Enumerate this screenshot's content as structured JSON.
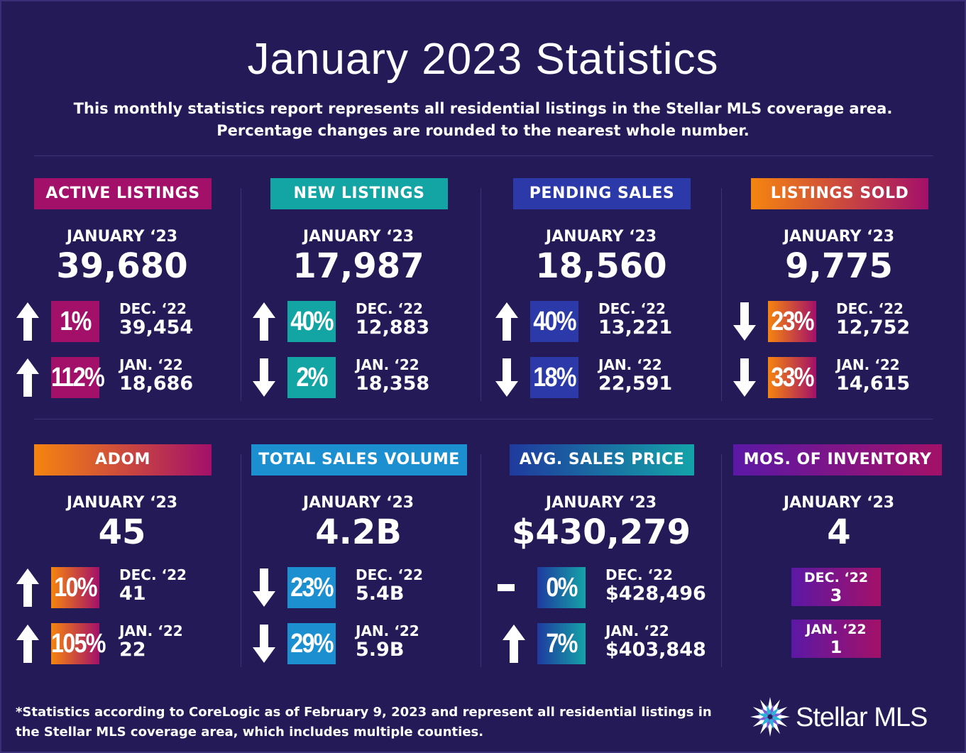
{
  "title": "January 2023 Statistics",
  "subtitle_line1": "This monthly statistics report represents all residential listings in the Stellar MLS coverage area.",
  "subtitle_line2": "Percentage changes are rounded to the nearest whole number.",
  "cards": [
    {
      "label": "ACTIVE LISTINGS",
      "period": "JANUARY ‘23",
      "value": "39,680",
      "rows": [
        {
          "dir": "up",
          "pct": "1%",
          "cmp_label": "DEC. ‘22",
          "cmp_value": "39,454"
        },
        {
          "dir": "up",
          "pct": "112%",
          "cmp_label": "JAN. ‘22",
          "cmp_value": "18,686"
        }
      ]
    },
    {
      "label": "NEW LISTINGS",
      "period": "JANUARY ‘23",
      "value": "17,987",
      "rows": [
        {
          "dir": "up",
          "pct": "40%",
          "cmp_label": "DEC. ‘22",
          "cmp_value": "12,883"
        },
        {
          "dir": "down",
          "pct": "2%",
          "cmp_label": "JAN. ‘22",
          "cmp_value": "18,358"
        }
      ]
    },
    {
      "label": "PENDING SALES",
      "period": "JANUARY ‘23",
      "value": "18,560",
      "rows": [
        {
          "dir": "up",
          "pct": "40%",
          "cmp_label": "DEC. ‘22",
          "cmp_value": "13,221"
        },
        {
          "dir": "down",
          "pct": "18%",
          "cmp_label": "JAN. ‘22",
          "cmp_value": "22,591"
        }
      ]
    },
    {
      "label": "LISTINGS SOLD",
      "period": "JANUARY ‘23",
      "value": "9,775",
      "rows": [
        {
          "dir": "down",
          "pct": "23%",
          "cmp_label": "DEC. ‘22",
          "cmp_value": "12,752"
        },
        {
          "dir": "down",
          "pct": "33%",
          "cmp_label": "JAN. ‘22",
          "cmp_value": "14,615"
        }
      ]
    },
    {
      "label": "ADOM",
      "period": "JANUARY ‘23",
      "value": "45",
      "rows": [
        {
          "dir": "up",
          "pct": "10%",
          "cmp_label": "DEC. ‘22",
          "cmp_value": "41"
        },
        {
          "dir": "up",
          "pct": "105%",
          "cmp_label": "JAN. ‘22",
          "cmp_value": "22"
        }
      ]
    },
    {
      "label": "TOTAL SALES VOLUME",
      "period": "JANUARY ‘23",
      "value": "4.2B",
      "rows": [
        {
          "dir": "down",
          "pct": "23%",
          "cmp_label": "DEC. ‘22",
          "cmp_value": "5.4B"
        },
        {
          "dir": "down",
          "pct": "29%",
          "cmp_label": "JAN. ‘22",
          "cmp_value": "5.9B"
        }
      ]
    },
    {
      "label": "AVG. SALES PRICE",
      "period": "JANUARY ‘23",
      "value": "$430,279",
      "rows": [
        {
          "dir": "flat",
          "pct": "0%",
          "cmp_label": "DEC. ‘22",
          "cmp_value": "$428,496"
        },
        {
          "dir": "up",
          "pct": "7%",
          "cmp_label": "JAN. ‘22",
          "cmp_value": "$403,848"
        }
      ]
    },
    {
      "label": "MOS. OF INVENTORY",
      "period": "JANUARY ‘23",
      "value": "4",
      "inventory": [
        {
          "label": "DEC. ‘22",
          "value": "3"
        },
        {
          "label": "JAN. ‘22",
          "value": "1"
        }
      ]
    }
  ],
  "colors": {
    "background": "#241a57",
    "magenta": "#a3106a",
    "teal": "#13a5a3",
    "blue": "#2b3aa8",
    "orange_to_magenta": [
      "#f5850f",
      "#a3106a"
    ],
    "sky_blue": "#1b8fd0",
    "navy_to_teal": [
      "#1f3a9e",
      "#14a3a8"
    ],
    "purple_to_magenta": [
      "#5b18a6",
      "#a31168"
    ]
  },
  "footnote_line1": "*Statistics according to CoreLogic as of February 9, 2023 and represent all residential listings in",
  "footnote_line2": "the Stellar MLS coverage area, which includes multiple counties.",
  "logo_text": "Stellar MLS",
  "logo_icon": "starburst-icon"
}
